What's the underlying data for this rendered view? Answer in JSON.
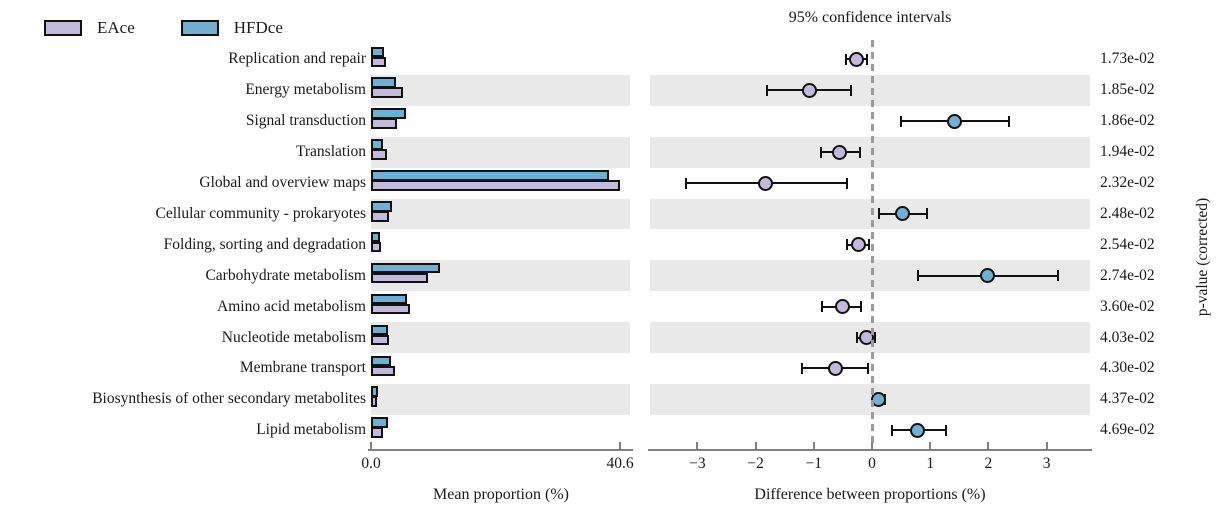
{
  "legend": {
    "items": [
      {
        "label": "EAce",
        "color": "#c3badb"
      },
      {
        "label": "HFDce",
        "color": "#72aecf"
      }
    ]
  },
  "right_panel_title": "95% confidence intervals",
  "pvalue_axis_label": "p-value (corrected)",
  "colors": {
    "eace": "#c3badb",
    "hfdce": "#72aecf",
    "stripe": "#e9e9e9",
    "axis": "#808080",
    "zero_line": "#9b9b9b",
    "outline": "#111111"
  },
  "chart_data": {
    "type": "extended-error-bar",
    "categories": [
      "Replication and repair",
      "Energy metabolism",
      "Signal transduction",
      "Translation",
      "Global and overview maps",
      "Cellular community - prokaryotes",
      "Folding, sorting and degradation",
      "Carbohydrate metabolism",
      "Amino acid metabolism",
      "Nucleotide metabolism",
      "Membrane transport",
      "Biosynthesis of other secondary metabolites",
      "Lipid metabolism"
    ],
    "series": [
      {
        "name": "EAce",
        "values": [
          2.4,
          5.2,
          4.2,
          2.6,
          40.6,
          2.9,
          1.7,
          9.3,
          6.4,
          2.9,
          3.9,
          1.0,
          2.0
        ]
      },
      {
        "name": "HFDce",
        "values": [
          2.1,
          4.1,
          5.7,
          2.0,
          38.8,
          3.4,
          1.5,
          11.3,
          5.9,
          2.8,
          3.3,
          1.1,
          2.8
        ]
      }
    ],
    "differences": [
      {
        "mean": -0.26,
        "ci_low": -0.45,
        "ci_high": -0.09,
        "enriched": "EAce"
      },
      {
        "mean": -1.08,
        "ci_low": -1.81,
        "ci_high": -0.36,
        "enriched": "EAce"
      },
      {
        "mean": 1.42,
        "ci_low": 0.5,
        "ci_high": 2.36,
        "enriched": "HFDce"
      },
      {
        "mean": -0.55,
        "ci_low": -0.87,
        "ci_high": -0.21,
        "enriched": "EAce"
      },
      {
        "mean": -1.83,
        "ci_low": -3.2,
        "ci_high": -0.43,
        "enriched": "EAce"
      },
      {
        "mean": 0.53,
        "ci_low": 0.12,
        "ci_high": 0.94,
        "enriched": "HFDce"
      },
      {
        "mean": -0.24,
        "ci_low": -0.43,
        "ci_high": -0.05,
        "enriched": "EAce"
      },
      {
        "mean": 1.99,
        "ci_low": 0.79,
        "ci_high": 3.2,
        "enriched": "HFDce"
      },
      {
        "mean": -0.51,
        "ci_low": -0.86,
        "ci_high": -0.19,
        "enriched": "EAce"
      },
      {
        "mean": -0.09,
        "ci_low": -0.25,
        "ci_high": 0.06,
        "enriched": "EAce"
      },
      {
        "mean": -0.63,
        "ci_low": -1.2,
        "ci_high": -0.07,
        "enriched": "EAce"
      },
      {
        "mean": 0.12,
        "ci_low": 0.02,
        "ci_high": 0.22,
        "enriched": "HFDce"
      },
      {
        "mean": 0.79,
        "ci_low": 0.34,
        "ci_high": 1.27,
        "enriched": "HFDce"
      }
    ],
    "p_values": [
      "1.73e-02",
      "1.85e-02",
      "1.86e-02",
      "1.94e-02",
      "2.32e-02",
      "2.48e-02",
      "2.54e-02",
      "2.74e-02",
      "3.60e-02",
      "4.03e-02",
      "4.30e-02",
      "4.37e-02",
      "4.69e-02"
    ],
    "left_axis": {
      "label": "Mean proportion (%)",
      "min": 0,
      "max": 40.6,
      "ticks": [
        {
          "value": 0,
          "label": "0.0"
        },
        {
          "value": 40.6,
          "label": "40.6"
        }
      ]
    },
    "right_axis": {
      "label": "Difference between proportions (%)",
      "min": -3.85,
      "max": 3.78,
      "ticks": [
        {
          "value": -3,
          "label": "−3"
        },
        {
          "value": -2,
          "label": "−2"
        },
        {
          "value": -1,
          "label": "−1"
        },
        {
          "value": 0,
          "label": "0"
        },
        {
          "value": 1,
          "label": "1"
        },
        {
          "value": 2,
          "label": "2"
        },
        {
          "value": 3,
          "label": "3"
        }
      ]
    },
    "grid": false,
    "legend_position": "top-left"
  }
}
